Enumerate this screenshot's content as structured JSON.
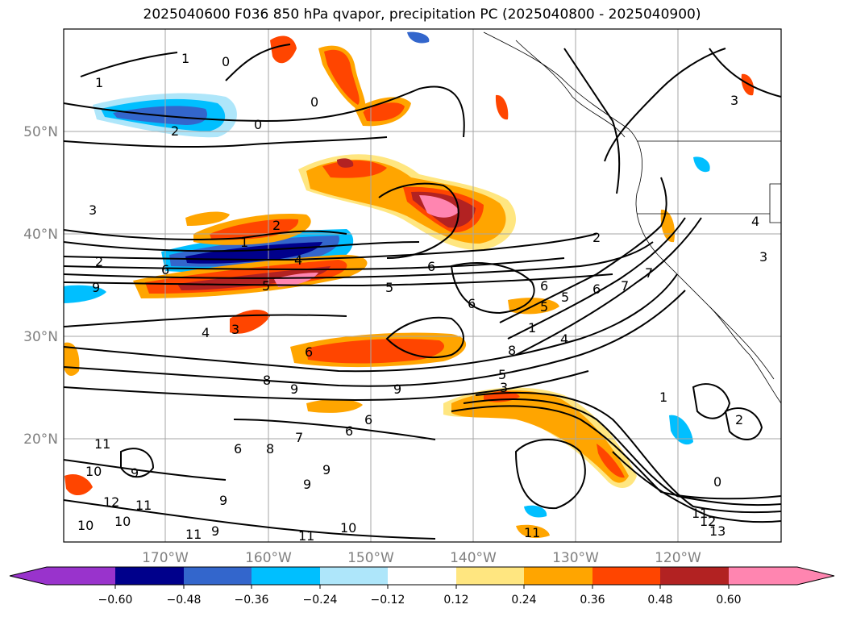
{
  "title": "2025040600 F036 850 hPa qvapor, precipitation PC (2025040800 - 2025040900)",
  "lat_labels": [
    "50°N",
    "40°N",
    "30°N",
    "20°N"
  ],
  "lon_labels": [
    "170°W",
    "160°W",
    "150°W",
    "140°W",
    "130°W",
    "120°W"
  ],
  "contour_labels": [
    "1",
    "1",
    "2",
    "0",
    "0",
    "0",
    "3",
    "2",
    "1",
    "2",
    "4",
    "6",
    "9",
    "2",
    "5",
    "6",
    "6",
    "5",
    "5",
    "6",
    "7",
    "7",
    "6",
    "5",
    "4",
    "3",
    "1",
    "4",
    "6",
    "8",
    "8",
    "9",
    "9",
    "5",
    "3",
    "6",
    "7",
    "6",
    "6",
    "11",
    "9",
    "8",
    "9",
    "9",
    "10",
    "9",
    "12",
    "11",
    "10",
    "10",
    "11",
    "9",
    "11",
    "10",
    "11",
    "0",
    "11",
    "12",
    "13",
    "1",
    "2",
    "3",
    "3",
    "4"
  ],
  "colorbar": {
    "ticks": [
      "−0.60",
      "−0.48",
      "−0.36",
      "−0.24",
      "−0.12",
      "0.12",
      "0.24",
      "0.36",
      "0.48",
      "0.60"
    ],
    "colors": [
      "#9933cc",
      "#00008b",
      "#3366cc",
      "#00bfff",
      "#aee6fa",
      "#ffffff",
      "#ffe680",
      "#ffa500",
      "#ff4500",
      "#b22222",
      "#ff85b0"
    ]
  }
}
